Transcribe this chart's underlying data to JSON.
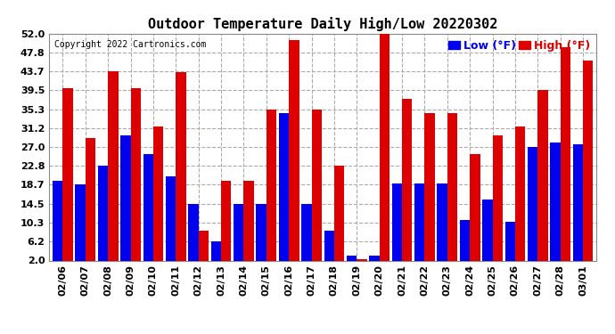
{
  "title": "Outdoor Temperature Daily High/Low 20220302",
  "copyright": "Copyright 2022 Cartronics.com",
  "legend_low": "Low (°F)",
  "legend_high": "High (°F)",
  "low_color": "#0000ee",
  "high_color": "#dd0000",
  "dates": [
    "02/06",
    "02/07",
    "02/08",
    "02/09",
    "02/10",
    "02/11",
    "02/12",
    "02/13",
    "02/14",
    "02/15",
    "02/16",
    "02/17",
    "02/18",
    "02/19",
    "02/20",
    "02/21",
    "02/22",
    "02/23",
    "02/24",
    "02/25",
    "02/26",
    "02/27",
    "02/28",
    "03/01"
  ],
  "highs": [
    40.0,
    29.0,
    43.7,
    40.0,
    31.5,
    43.5,
    8.5,
    19.5,
    19.5,
    35.3,
    50.5,
    35.3,
    22.8,
    2.2,
    52.0,
    37.5,
    34.5,
    34.5,
    25.5,
    29.5,
    31.5,
    39.5,
    49.0,
    46.0
  ],
  "lows": [
    19.5,
    18.7,
    22.8,
    29.5,
    25.5,
    20.5,
    14.5,
    6.2,
    14.5,
    14.5,
    34.5,
    14.5,
    8.5,
    3.0,
    3.0,
    19.0,
    19.0,
    19.0,
    11.0,
    15.5,
    10.5,
    27.0,
    28.0,
    27.5
  ],
  "ylim": [
    2.0,
    52.0
  ],
  "yticks": [
    2.0,
    6.2,
    10.3,
    14.5,
    18.7,
    22.8,
    27.0,
    31.2,
    35.3,
    39.5,
    43.7,
    47.8,
    52.0
  ],
  "background_color": "#ffffff",
  "grid_color": "#aaaaaa",
  "bar_width": 0.45
}
